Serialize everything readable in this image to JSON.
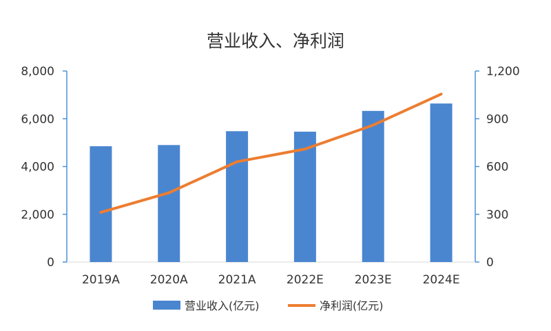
{
  "chart_data": {
    "type": "bar",
    "title": "营业收入、净利润",
    "categories": [
      "2019A",
      "2020A",
      "2021A",
      "2022E",
      "2023E",
      "2024E"
    ],
    "series": [
      {
        "name": "营业收入(亿元)",
        "type": "bar",
        "axis": "left",
        "values": [
          4850,
          4900,
          5480,
          5460,
          6330,
          6640
        ]
      },
      {
        "name": "净利润(亿元)",
        "type": "line",
        "axis": "right",
        "values": [
          312,
          435,
          630,
          710,
          860,
          1055
        ]
      }
    ],
    "y_left": {
      "ylim": [
        0,
        8000
      ],
      "ticks": [
        "0",
        "2,000",
        "4,000",
        "6,000",
        "8,000"
      ],
      "tick_values": [
        0,
        2000,
        4000,
        6000,
        8000
      ]
    },
    "y_right": {
      "ylim": [
        0,
        1200
      ],
      "ticks": [
        "0",
        "300",
        "600",
        "900",
        "1,200"
      ],
      "tick_values": [
        0,
        300,
        600,
        900,
        1200
      ]
    },
    "legend_position": "bottom",
    "grid": false
  },
  "colors": {
    "bar": "#4A86D0",
    "line": "#ED7D31",
    "axis": "#4A90D9",
    "baseline": "#D9D9D9"
  }
}
